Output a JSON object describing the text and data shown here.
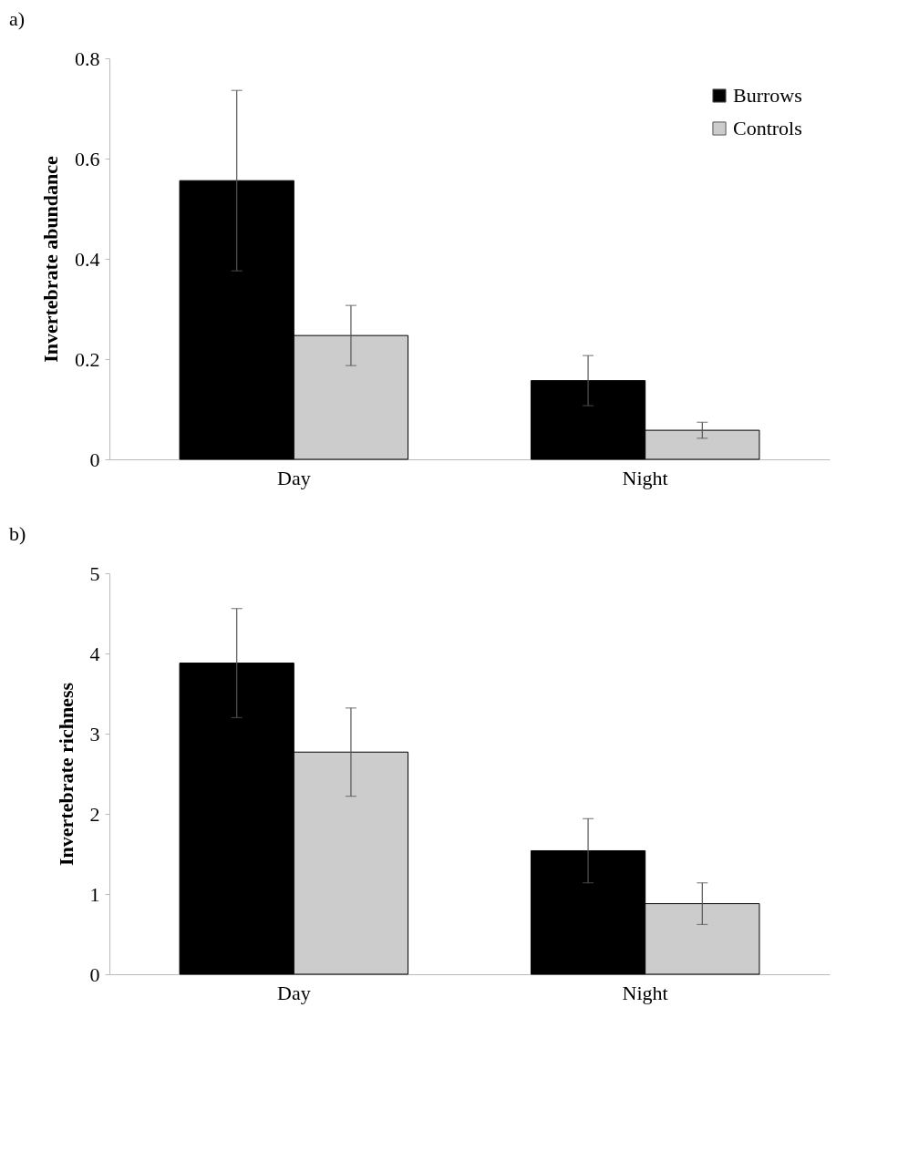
{
  "chart_data": [
    {
      "type": "bar",
      "title": "a)",
      "ylabel": "Invertebrate abundance",
      "categories": [
        "Day",
        "Night"
      ],
      "ylim": [
        0,
        0.8
      ],
      "yticks": [
        0,
        0.2,
        0.4,
        0.6,
        0.8
      ],
      "legend": "top right",
      "series": [
        {
          "name": "Burrows",
          "color": "#000000",
          "values": [
            0.556,
            0.157
          ],
          "errors": [
            0.18,
            0.05
          ]
        },
        {
          "name": "Controls",
          "color": "#cccccc",
          "values": [
            0.247,
            0.058
          ],
          "errors": [
            0.06,
            0.016
          ]
        }
      ]
    },
    {
      "type": "bar",
      "title": "b)",
      "ylabel": "Invertebrate richness",
      "categories": [
        "Day",
        "Night"
      ],
      "ylim": [
        0,
        5
      ],
      "yticks": [
        0,
        1,
        2,
        3,
        4,
        5
      ],
      "series": [
        {
          "color": "#000000",
          "values": [
            3.88,
            1.54
          ],
          "errors": [
            0.68,
            0.4
          ]
        },
        {
          "color": "#cccccc",
          "values": [
            2.77,
            0.88
          ],
          "errors": [
            0.55,
            0.26
          ]
        }
      ]
    }
  ]
}
